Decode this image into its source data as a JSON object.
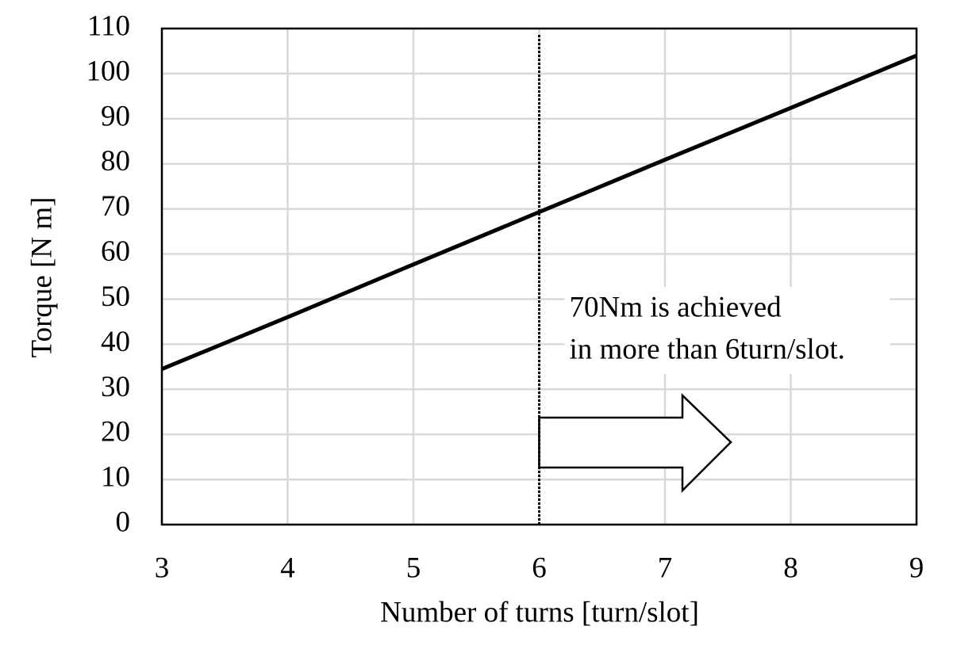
{
  "chart_data": {
    "type": "line",
    "x_label": "Number of turns [turn/slot]",
    "y_label": "Torque [N m]",
    "x": [
      3,
      4,
      5,
      6,
      7,
      8,
      9
    ],
    "series": [
      {
        "name": "Torque",
        "color": "#000000",
        "values": [
          34.5,
          46,
          57.7,
          69.3,
          80.9,
          92.4,
          104
        ]
      }
    ],
    "xlim": [
      3,
      9
    ],
    "xticks": [
      3,
      4,
      5,
      6,
      7,
      8,
      9
    ],
    "ylim": [
      0,
      110
    ],
    "yticks": [
      0,
      10,
      20,
      30,
      40,
      50,
      60,
      70,
      80,
      90,
      100,
      110
    ],
    "grid": true,
    "vline": 6,
    "annotation": [
      "70Nm is achieved",
      "in more than 6turn/slot."
    ]
  }
}
